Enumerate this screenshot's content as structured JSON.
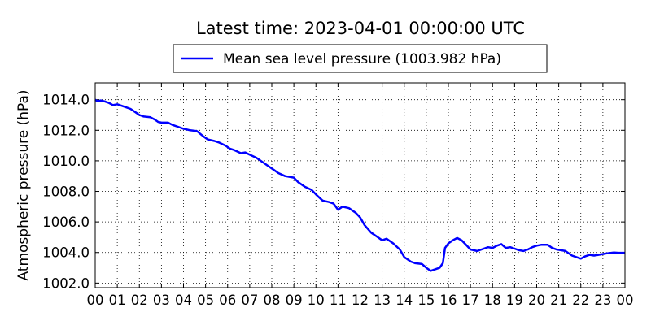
{
  "chart_data": {
    "type": "line",
    "title": "Latest time: 2023-04-01 00:00:00 UTC",
    "ylabel": "Atmospheric pressure (hPa)",
    "xlabel": "",
    "grid": true,
    "legend_position": "top-center (above plot)",
    "x_tick_labels": [
      "00",
      "01",
      "02",
      "03",
      "04",
      "05",
      "06",
      "07",
      "08",
      "09",
      "10",
      "11",
      "12",
      "13",
      "14",
      "15",
      "16",
      "17",
      "18",
      "19",
      "20",
      "21",
      "22",
      "23",
      "00"
    ],
    "y_tick_labels": [
      "1002.0",
      "1004.0",
      "1006.0",
      "1008.0",
      "1010.0",
      "1012.0",
      "1014.0"
    ],
    "y_ticks": [
      1002,
      1004,
      1006,
      1008,
      1010,
      1012,
      1014
    ],
    "xlim_hours": [
      0,
      24
    ],
    "ylim": [
      1001.7,
      1015.1
    ],
    "series": [
      {
        "name": "Mean sea level pressure (1003.982 hPa)",
        "color": "#0000ff",
        "x_hours": [
          0,
          0.1,
          0.25,
          0.4,
          0.6,
          0.8,
          1.0,
          1.2,
          1.4,
          1.6,
          1.8,
          2.0,
          2.2,
          2.5,
          2.7,
          2.85,
          3.0,
          3.3,
          3.5,
          3.8,
          4.0,
          4.3,
          4.6,
          4.9,
          5.1,
          5.4,
          5.6,
          5.9,
          6.1,
          6.3,
          6.6,
          6.8,
          7.0,
          7.3,
          7.5,
          7.8,
          8.1,
          8.3,
          8.6,
          8.8,
          9.0,
          9.2,
          9.5,
          9.8,
          10.0,
          10.3,
          10.6,
          10.8,
          11.0,
          11.2,
          11.5,
          11.8,
          12.0,
          12.2,
          12.5,
          12.8,
          13.0,
          13.2,
          13.5,
          13.8,
          14.0,
          14.3,
          14.5,
          14.8,
          15.0,
          15.2,
          15.4,
          15.6,
          15.75,
          15.85,
          16.0,
          16.2,
          16.4,
          16.6,
          16.8,
          17.0,
          17.3,
          17.5,
          17.8,
          18.0,
          18.2,
          18.4,
          18.6,
          18.8,
          19.0,
          19.2,
          19.4,
          19.6,
          19.8,
          20.0,
          20.2,
          20.5,
          20.7,
          20.9,
          21.1,
          21.3,
          21.6,
          21.8,
          22.0,
          22.2,
          22.4,
          22.6,
          22.8,
          23.0,
          23.2,
          23.5,
          23.7,
          23.9,
          24.0
        ],
        "y_values": [
          1014.0,
          1013.9,
          1013.95,
          1013.9,
          1013.8,
          1013.65,
          1013.7,
          1013.6,
          1013.5,
          1013.4,
          1013.2,
          1013.0,
          1012.9,
          1012.85,
          1012.7,
          1012.55,
          1012.5,
          1012.5,
          1012.35,
          1012.2,
          1012.1,
          1012.0,
          1011.95,
          1011.6,
          1011.4,
          1011.3,
          1011.2,
          1011.0,
          1010.8,
          1010.7,
          1010.5,
          1010.55,
          1010.4,
          1010.2,
          1010.0,
          1009.7,
          1009.4,
          1009.2,
          1009.0,
          1008.95,
          1008.9,
          1008.6,
          1008.3,
          1008.1,
          1007.8,
          1007.4,
          1007.3,
          1007.2,
          1006.8,
          1007.0,
          1006.9,
          1006.6,
          1006.3,
          1005.8,
          1005.3,
          1005.0,
          1004.8,
          1004.9,
          1004.6,
          1004.2,
          1003.7,
          1003.4,
          1003.3,
          1003.25,
          1003.0,
          1002.8,
          1002.9,
          1003.0,
          1003.3,
          1004.3,
          1004.6,
          1004.8,
          1004.95,
          1004.8,
          1004.5,
          1004.2,
          1004.1,
          1004.2,
          1004.35,
          1004.3,
          1004.45,
          1004.55,
          1004.3,
          1004.35,
          1004.25,
          1004.15,
          1004.1,
          1004.2,
          1004.35,
          1004.45,
          1004.5,
          1004.5,
          1004.3,
          1004.2,
          1004.15,
          1004.1,
          1003.8,
          1003.7,
          1003.6,
          1003.75,
          1003.85,
          1003.8,
          1003.85,
          1003.9,
          1003.95,
          1004.0,
          1003.98,
          1003.982,
          1003.982
        ]
      }
    ]
  }
}
